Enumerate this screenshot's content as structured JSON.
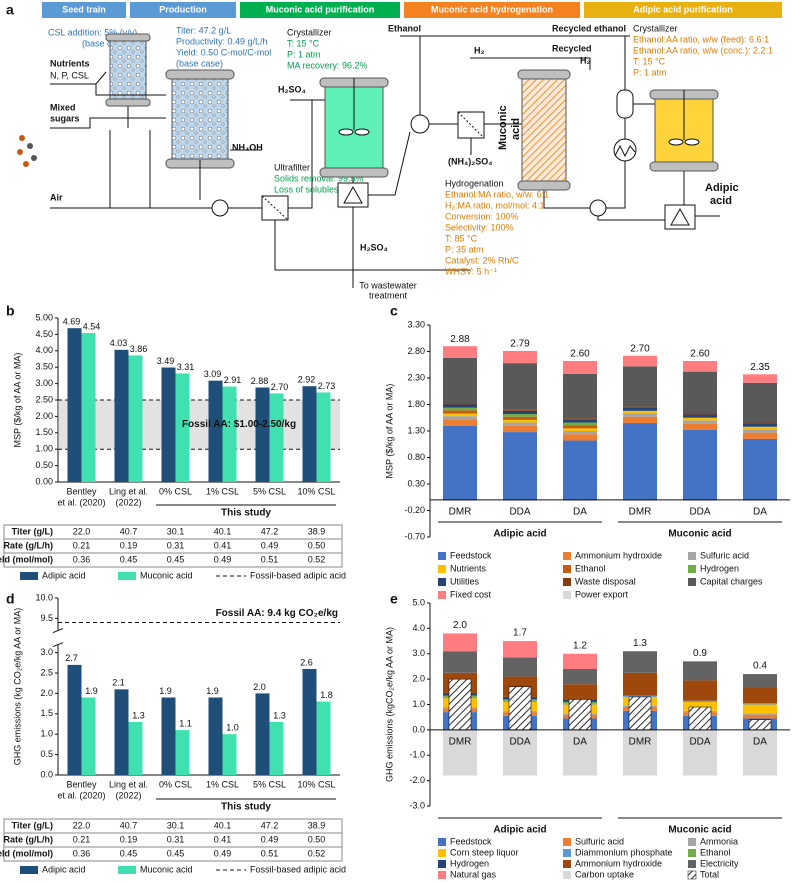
{
  "diagram": {
    "label": "a",
    "stages": [
      "Seed train",
      "Production",
      "Muconic acid purification",
      "Muconic acid hydrogenation",
      "Adipic acid purification"
    ],
    "seed_notes": [
      "CSL addition: 5% (v/v)",
      "(base case)"
    ],
    "production_notes": [
      "Titer: 47.2 g/L",
      "Productivity: 0.49 g/L/h",
      "Yield: 0.50 C-mol/C-mol",
      "(base case)"
    ],
    "inputs": [
      "Nutrients",
      "N, P, CSL",
      "Mixed",
      "sugars",
      "Air",
      "NH₄OH"
    ],
    "ultrafilter": [
      "Ultrafilter",
      "Solids removal: 99.5%",
      "Loss of solubles: 10%"
    ],
    "ma_crystallizer": [
      "Crystallizer",
      "T: 15 °C",
      "P: 1 atm",
      "MA recovery: 96.2%"
    ],
    "streams": [
      "H₂SO₄",
      "H₂SO₄",
      "To wastewater",
      "treatment",
      "Ethanol",
      "H₂",
      "Recycled ethanol",
      "Recycled",
      "H₂",
      "(NH₄)₂SO₄",
      "Muconic",
      "acid"
    ],
    "hydrogenation": [
      "Hydrogenation",
      "Ethanol:MA ratio, w/w: 6:1",
      "H₂:MA ratio, mol/mol: 4:1",
      "Conversion: 100%",
      "Selectivity: 100%",
      "T: 85 °C",
      "P: 35 atm",
      "Catalyst: 2% Rh/C",
      "WHSV: 5 h⁻¹"
    ],
    "aa_crystallizer": [
      "Crystallizer",
      "Ethanol:AA ratio, w/w (feed): 6.6:1",
      "Ethanol:AA ratio, w/w (conc.): 2.2:1",
      "T: 15 °C",
      "P: 1 atm"
    ],
    "product": [
      "Adipic",
      "acid"
    ]
  },
  "chart_data": [
    {
      "label": "b",
      "type": "bar",
      "ylabel": "MSP ($/kg of AA or MA)",
      "categories": [
        [
          "Bentley",
          "et al. (2020)"
        ],
        [
          "Ling et al.",
          "(2022)"
        ],
        [
          "0% CSL"
        ],
        [
          "1% CSL"
        ],
        [
          "5% CSL"
        ],
        [
          "10% CSL"
        ]
      ],
      "series": [
        {
          "name": "Adipic acid",
          "color": "#1f4e79",
          "values": [
            4.69,
            4.03,
            3.49,
            3.09,
            2.88,
            2.92
          ],
          "value_labels": [
            "4.69",
            "4.03",
            "3.49",
            "3.09",
            "2.88",
            "2.92"
          ]
        },
        {
          "name": "Muconic acid",
          "color": "#40e0b0",
          "values": [
            4.54,
            3.86,
            3.31,
            2.91,
            2.7,
            2.73
          ],
          "value_labels": [
            "4.54",
            "3.86",
            "3.31",
            "2.91",
            "2.70",
            "2.73"
          ]
        }
      ],
      "ylim": [
        0,
        5
      ],
      "yticks": [
        {
          "value": 0,
          "label": "0.00"
        },
        {
          "value": 0.5,
          "label": "0.50"
        },
        {
          "value": 1,
          "label": "1.00"
        },
        {
          "value": 1.5,
          "label": "1.50"
        },
        {
          "value": 2,
          "label": "2.00"
        },
        {
          "value": 2.5,
          "label": "2.50"
        },
        {
          "value": 3,
          "label": "3.00"
        },
        {
          "value": 3.5,
          "label": "3.50"
        },
        {
          "value": 4,
          "label": "4.00"
        },
        {
          "value": 4.5,
          "label": "4.50"
        },
        {
          "value": 5,
          "label": "5.00"
        }
      ],
      "reference_band": {
        "range": [
          1,
          2.5
        ],
        "label": "Fossil AA: $1.00-2.50/kg",
        "name": "Fossil-based adipic acid"
      },
      "study_label": "This study",
      "table": {
        "rows": [
          {
            "label": "Titer (g/L)",
            "cells": [
              "22.0",
              "40.7",
              "30.1",
              "40.1",
              "47.2",
              "38.9"
            ]
          },
          {
            "label": "Rate (g/L/h)",
            "cells": [
              "0.21",
              "0.19",
              "0.31",
              "0.41",
              "0.49",
              "0.50"
            ]
          },
          {
            "label": "Yield (mol/mol)",
            "cells": [
              "0.36",
              "0.45",
              "0.45",
              "0.49",
              "0.51",
              "0.52"
            ]
          }
        ]
      }
    },
    {
      "label": "c",
      "type": "stacked_bar",
      "ylabel": "MSP ($/kg of AA or MA)",
      "categories": [
        "DMR",
        "DDA",
        "DA",
        "DMR",
        "DDA",
        "DA"
      ],
      "groups": [
        "Adipic acid",
        "Muconic acid"
      ],
      "ylim": [
        -0.7,
        3.3
      ],
      "yticks": [
        {
          "value": -0.7,
          "label": "-0.70"
        },
        {
          "value": -0.2,
          "label": "-0.20"
        },
        {
          "value": 0.3,
          "label": "0.30"
        },
        {
          "value": 0.8,
          "label": "0.80"
        },
        {
          "value": 1.3,
          "label": "1.30"
        },
        {
          "value": 1.8,
          "label": "1.80"
        },
        {
          "value": 2.3,
          "label": "2.30"
        },
        {
          "value": 2.8,
          "label": "2.80"
        },
        {
          "value": 3.3,
          "label": "3.30"
        }
      ],
      "series": [
        {
          "name": "Feedstock",
          "color": "#4472c4",
          "values": [
            1.4,
            1.28,
            1.12,
            1.45,
            1.32,
            1.15
          ]
        },
        {
          "name": "Ammonium hydroxide",
          "color": "#ed7d31",
          "values": [
            0.12,
            0.12,
            0.12,
            0.12,
            0.12,
            0.12
          ]
        },
        {
          "name": "Sulfuric acid",
          "color": "#a5a5a5",
          "values": [
            0.06,
            0.06,
            0.06,
            0.06,
            0.06,
            0.06
          ]
        },
        {
          "name": "Nutrients",
          "color": "#ffc000",
          "values": [
            0.05,
            0.05,
            0.05,
            0.05,
            0.05,
            0.05
          ]
        },
        {
          "name": "Ethanol",
          "color": "#c55a11",
          "values": [
            0.06,
            0.06,
            0.06,
            0,
            0,
            0
          ]
        },
        {
          "name": "Hydrogen",
          "color": "#70ad47",
          "values": [
            0.05,
            0.05,
            0.05,
            0,
            0,
            0
          ]
        },
        {
          "name": "Utilities",
          "color": "#264478",
          "values": [
            0.06,
            0.06,
            0.06,
            0.06,
            0.06,
            0.06
          ]
        },
        {
          "name": "Waste disposal",
          "color": "#843c0c",
          "values": [
            0.02,
            0.02,
            0.02,
            0.02,
            0.02,
            0.02
          ]
        },
        {
          "name": "Capital charges",
          "color": "#595959",
          "values": [
            0.86,
            0.88,
            0.84,
            0.76,
            0.79,
            0.75
          ]
        },
        {
          "name": "Fixed cost",
          "color": "#ff7c80",
          "values": [
            0.22,
            0.23,
            0.24,
            0.2,
            0.2,
            0.16
          ]
        },
        {
          "name": "Power export",
          "color": "#d9d9d9",
          "values": [
            -0.02,
            -0.02,
            -0.02,
            -0.02,
            -0.02,
            -0.02
          ]
        }
      ],
      "totals": {
        "values": [
          2.88,
          2.79,
          2.6,
          2.7,
          2.6,
          2.35
        ],
        "value_labels": [
          "2.88",
          "2.79",
          "2.60",
          "2.70",
          "2.60",
          "2.35"
        ]
      }
    },
    {
      "label": "d",
      "type": "bar",
      "ylabel": "GHG emissions (kg CO₂e/kg AA or MA)",
      "categories": [
        [
          "Bentley",
          "et al. (2020)"
        ],
        [
          "Ling et al.",
          "(2022)"
        ],
        [
          "0% CSL"
        ],
        [
          "1% CSL"
        ],
        [
          "5% CSL"
        ],
        [
          "10% CSL"
        ]
      ],
      "series": [
        {
          "name": "Adipic acid",
          "color": "#1f4e79",
          "values": [
            2.7,
            2.1,
            1.9,
            1.9,
            2,
            2.6
          ],
          "value_labels": [
            "2.7",
            "2.1",
            "1.9",
            "1.9",
            "2.0",
            "2.6"
          ]
        },
        {
          "name": "Muconic acid",
          "color": "#40e0b0",
          "values": [
            1.9,
            1.3,
            1.1,
            1,
            1.3,
            1.8
          ],
          "value_labels": [
            "1.9",
            "1.3",
            "1.1",
            "1.0",
            "1.3",
            "1.8"
          ]
        }
      ],
      "ylim": [
        0,
        10
      ],
      "axis_break": [
        3.1,
        9.3
      ],
      "yticks": [
        {
          "value": 0,
          "label": "0.0"
        },
        0.5,
        {
          "value": 1,
          "label": "1.0"
        },
        1.5,
        {
          "value": 2,
          "label": "2.0"
        },
        2.5,
        {
          "value": 3,
          "label": "3.0"
        },
        9.5,
        {
          "value": 10,
          "label": "10.0"
        }
      ],
      "reference_line": {
        "value": 9.4,
        "label": "Fossil AA: 9.4 kg CO₂e/kg",
        "name": "Fossil-based adipic acid"
      },
      "study_label": "This study",
      "table": {
        "rows": [
          {
            "label": "Titer (g/L)",
            "cells": [
              "22.0",
              "40.7",
              "30.1",
              "40.1",
              "47.2",
              "38.9"
            ]
          },
          {
            "label": "Rate (g/L/h)",
            "cells": [
              "0.21",
              "0.19",
              "0.31",
              "0.41",
              "0.49",
              "0.50"
            ]
          },
          {
            "label": "Yield (mol/mol)",
            "cells": [
              "0.36",
              "0.45",
              "0.45",
              "0.49",
              "0.51",
              "0.52"
            ]
          }
        ]
      }
    },
    {
      "label": "e",
      "type": "stacked_bar",
      "ylabel": "GHG emissions (kgCO₂e/kg AA or MA)",
      "categories": [
        "DMR",
        "DDA",
        "DA",
        "DMR",
        "DDA",
        "DA"
      ],
      "groups": [
        "Adipic acid",
        "Muconic acid"
      ],
      "ylim": [
        -3,
        5
      ],
      "yticks": [
        {
          "value": -3,
          "label": "-3.0"
        },
        {
          "value": -2,
          "label": "-2.0"
        },
        {
          "value": -1,
          "label": "-1.0"
        },
        {
          "value": 0,
          "label": "0.0"
        },
        {
          "value": 1,
          "label": "1.0"
        },
        {
          "value": 2,
          "label": "2.0"
        },
        {
          "value": 3,
          "label": "3.0"
        },
        {
          "value": 4,
          "label": "4.0"
        },
        {
          "value": 5,
          "label": "5.0"
        }
      ],
      "series": [
        {
          "name": "Feedstock",
          "color": "#4472c4",
          "values": [
            0.7,
            0.55,
            0.45,
            0.75,
            0.55,
            0.45
          ]
        },
        {
          "name": "Sulfuric acid",
          "color": "#ed7d31",
          "values": [
            0.15,
            0.15,
            0.15,
            0.15,
            0.15,
            0.15
          ]
        },
        {
          "name": "Ammonia",
          "color": "#a5a5a5",
          "values": [
            0.05,
            0.05,
            0.05,
            0.05,
            0.05,
            0.05
          ]
        },
        {
          "name": "Corn steep liquor",
          "color": "#ffc000",
          "values": [
            0.35,
            0.35,
            0.35,
            0.35,
            0.35,
            0.35
          ]
        },
        {
          "name": "Diammonium phosphate",
          "color": "#5b9bd5",
          "values": [
            0.05,
            0.05,
            0.05,
            0.05,
            0.05,
            0.05
          ]
        },
        {
          "name": "Ethanol",
          "color": "#70ad47",
          "values": [
            0.05,
            0.05,
            0.05,
            0,
            0,
            0
          ]
        },
        {
          "name": "Hydrogen",
          "color": "#264478",
          "values": [
            0.1,
            0.1,
            0.1,
            0,
            0,
            0
          ]
        },
        {
          "name": "Ammonium hydroxide",
          "color": "#9e480e",
          "values": [
            0.8,
            0.8,
            0.6,
            0.9,
            0.8,
            0.6
          ]
        },
        {
          "name": "Electricity",
          "color": "#636363",
          "values": [
            0.85,
            0.75,
            0.6,
            0.85,
            0.75,
            0.55
          ]
        },
        {
          "name": "Natural gas",
          "color": "#ff7c80",
          "values": [
            0.7,
            0.65,
            0.6,
            0,
            0,
            0
          ]
        },
        {
          "name": "Carbon uptake",
          "color": "#d9d9d9",
          "values": [
            -1.8,
            -1.8,
            -1.8,
            -1.8,
            -1.8,
            -1.8
          ]
        },
        {
          "name": "Total",
          "style": "hatch",
          "values": [
            2,
            1.7,
            1.2,
            1.3,
            0.9,
            0.4
          ],
          "value_labels": [
            "2.0",
            "1.7",
            "1.2",
            "1.3",
            "0.9",
            "0.4"
          ]
        }
      ]
    }
  ]
}
